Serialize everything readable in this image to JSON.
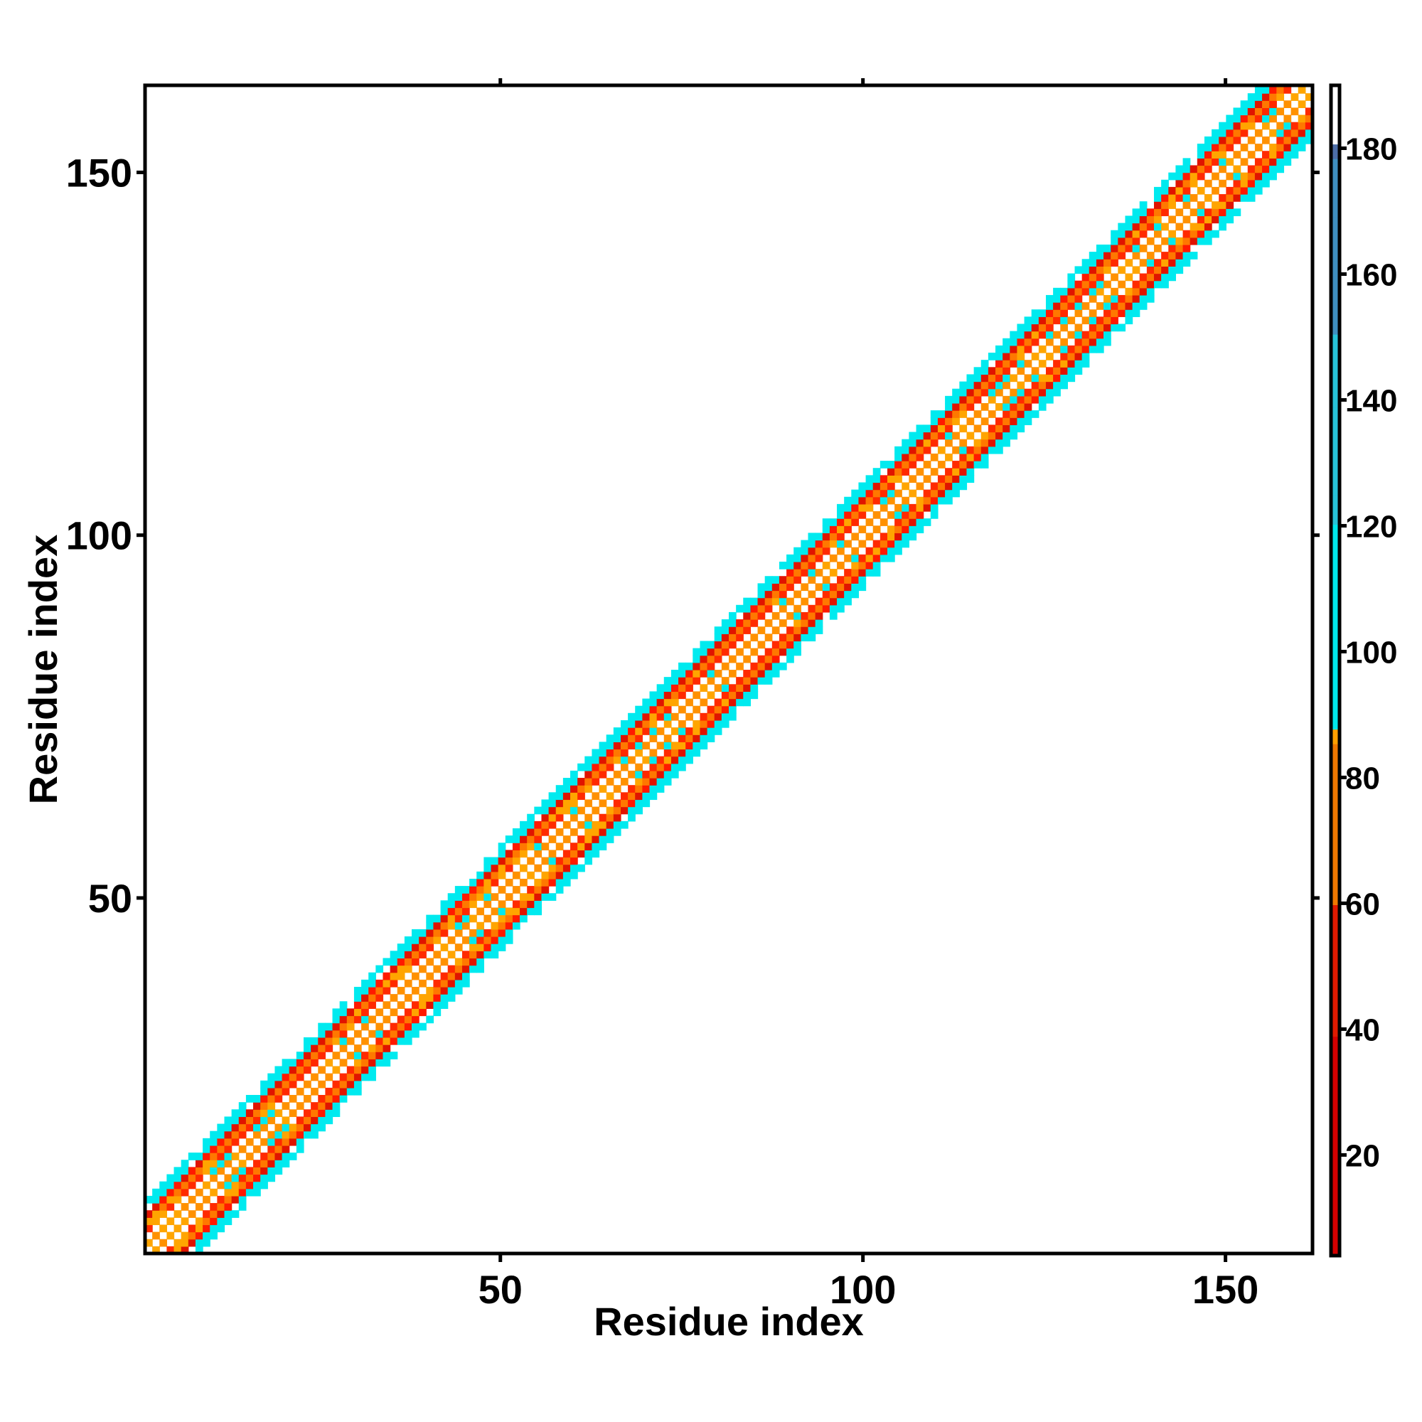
{
  "chart_data": {
    "type": "heatmap",
    "xlabel": "Residue index",
    "ylabel": "Residue index",
    "xlim": [
      1,
      162
    ],
    "ylim": [
      1,
      162
    ],
    "x_ticks": [
      50,
      100,
      150
    ],
    "y_ticks": [
      50,
      100,
      150
    ],
    "band_half_width": 7,
    "colorbar": {
      "range": [
        4,
        190
      ],
      "ticks": [
        20,
        40,
        60,
        80,
        100,
        120,
        140,
        160,
        180
      ],
      "stops": [
        {
          "value": 4,
          "color": "#d40000"
        },
        {
          "value": 40,
          "color": "#e01a00"
        },
        {
          "value": 60,
          "color": "#f07800"
        },
        {
          "value": 85,
          "color": "#ff9f00"
        },
        {
          "value": 88,
          "color": "#00e8ec"
        },
        {
          "value": 120,
          "color": "#27c3d8"
        },
        {
          "value": 150,
          "color": "#3f8fbf"
        },
        {
          "value": 178,
          "color": "#4d6ea8"
        },
        {
          "value": 180,
          "color": "#ffffff"
        },
        {
          "value": 190,
          "color": "#ffffff"
        }
      ]
    },
    "band_profile": [
      {
        "offset": 0,
        "color": "#ffffff"
      },
      {
        "offset": 1,
        "color": "#ff9100"
      },
      {
        "offset": 2,
        "color": "#ffffff"
      },
      {
        "offset": 3,
        "color": "#ff2a00"
      },
      {
        "offset": 4,
        "color": "#ff7800"
      },
      {
        "offset": 5,
        "color": "#e01400"
      },
      {
        "offset": 6,
        "color": "#00eaef"
      },
      {
        "offset": 7,
        "color": "#00eaef"
      }
    ],
    "colors": {
      "red": "#ff1a00",
      "dark_red": "#e01400",
      "orange": "#ff8c00",
      "light_orange": "#ffa500",
      "cyan": "#00eaef",
      "white": "#ffffff"
    }
  }
}
